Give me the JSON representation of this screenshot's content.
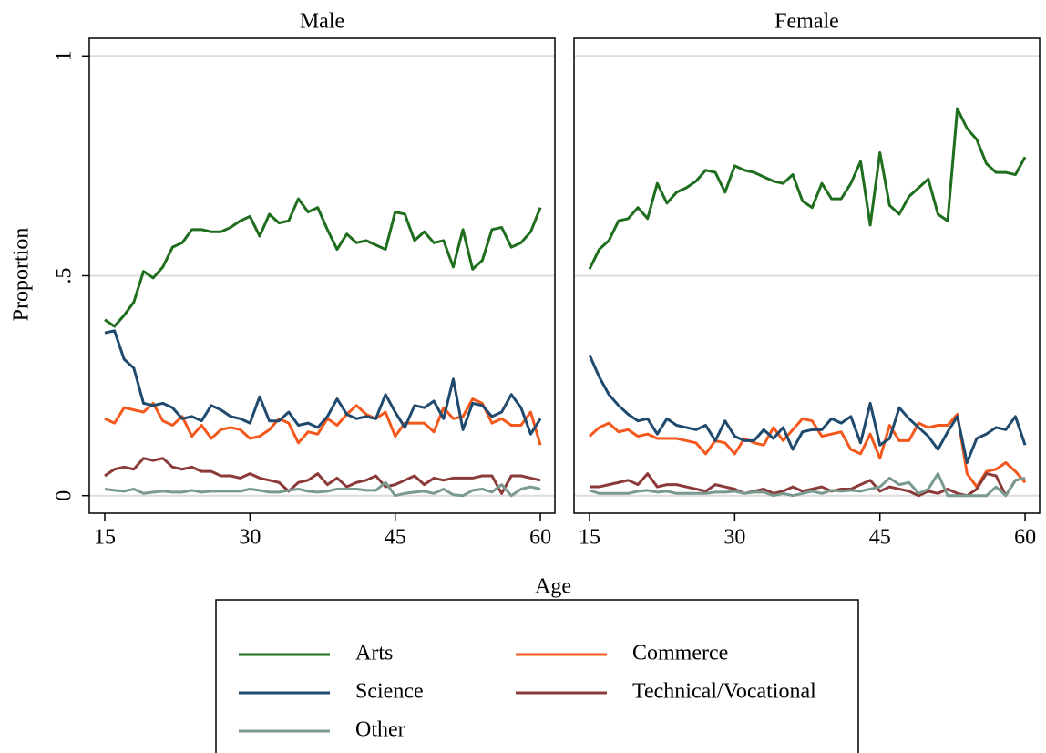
{
  "axes": {
    "xlabel": "Age",
    "ylabel": "Proportion",
    "legend": "bottom"
  },
  "chart_data": [
    {
      "type": "line",
      "title": "Male",
      "x": [
        15,
        16,
        17,
        18,
        19,
        20,
        21,
        22,
        23,
        24,
        25,
        26,
        27,
        28,
        29,
        30,
        31,
        32,
        33,
        34,
        35,
        36,
        37,
        38,
        39,
        40,
        41,
        42,
        43,
        44,
        45,
        46,
        47,
        48,
        49,
        50,
        51,
        52,
        53,
        54,
        55,
        56,
        57,
        58,
        59,
        60
      ],
      "xlim": [
        13.4,
        61.5
      ],
      "ylim": [
        -0.04,
        1.04
      ],
      "xticks": [
        15,
        30,
        45,
        60
      ],
      "yticks": [
        0,
        {
          "value": 0.5,
          "label": ".5"
        },
        1
      ],
      "grid": true,
      "series": [
        {
          "name": "Arts",
          "color": "#1e6e1e",
          "values": [
            0.4,
            0.385,
            0.41,
            0.44,
            0.51,
            0.495,
            0.52,
            0.565,
            0.575,
            0.605,
            0.605,
            0.6,
            0.6,
            0.61,
            0.625,
            0.635,
            0.59,
            0.64,
            0.62,
            0.625,
            0.675,
            0.645,
            0.655,
            0.605,
            0.56,
            0.595,
            0.575,
            0.58,
            0.57,
            0.56,
            0.645,
            0.64,
            0.58,
            0.6,
            0.575,
            0.58,
            0.52,
            0.605,
            0.515,
            0.535,
            0.605,
            0.61,
            0.565,
            0.575,
            0.6,
            0.655
          ]
        },
        {
          "name": "Commerce",
          "color": "#f4581c",
          "values": [
            0.175,
            0.165,
            0.2,
            0.195,
            0.19,
            0.21,
            0.17,
            0.16,
            0.18,
            0.135,
            0.16,
            0.13,
            0.15,
            0.155,
            0.15,
            0.13,
            0.135,
            0.15,
            0.175,
            0.165,
            0.12,
            0.145,
            0.14,
            0.175,
            0.16,
            0.185,
            0.205,
            0.185,
            0.175,
            0.19,
            0.135,
            0.165,
            0.165,
            0.165,
            0.145,
            0.2,
            0.175,
            0.18,
            0.22,
            0.21,
            0.165,
            0.175,
            0.16,
            0.16,
            0.19,
            0.115
          ]
        },
        {
          "name": "Science",
          "color": "#1f4a6e",
          "values": [
            0.37,
            0.375,
            0.31,
            0.29,
            0.21,
            0.205,
            0.21,
            0.2,
            0.175,
            0.18,
            0.17,
            0.205,
            0.195,
            0.18,
            0.175,
            0.165,
            0.225,
            0.17,
            0.17,
            0.19,
            0.16,
            0.165,
            0.155,
            0.18,
            0.22,
            0.185,
            0.175,
            0.18,
            0.175,
            0.23,
            0.19,
            0.155,
            0.205,
            0.2,
            0.215,
            0.175,
            0.265,
            0.15,
            0.21,
            0.205,
            0.18,
            0.19,
            0.23,
            0.2,
            0.14,
            0.175
          ]
        },
        {
          "name": "Technical/Vocational",
          "color": "#8b3a3a",
          "values": [
            0.045,
            0.06,
            0.065,
            0.06,
            0.085,
            0.08,
            0.085,
            0.065,
            0.06,
            0.065,
            0.055,
            0.055,
            0.045,
            0.045,
            0.04,
            0.05,
            0.04,
            0.035,
            0.03,
            0.01,
            0.03,
            0.035,
            0.05,
            0.025,
            0.04,
            0.02,
            0.03,
            0.035,
            0.045,
            0.02,
            0.025,
            0.035,
            0.045,
            0.025,
            0.04,
            0.035,
            0.04,
            0.04,
            0.04,
            0.045,
            0.045,
            0.005,
            0.045,
            0.045,
            0.04,
            0.035
          ]
        },
        {
          "name": "Other",
          "color": "#7a9a90",
          "values": [
            0.015,
            0.012,
            0.01,
            0.015,
            0.005,
            0.008,
            0.01,
            0.008,
            0.008,
            0.012,
            0.008,
            0.01,
            0.01,
            0.01,
            0.01,
            0.015,
            0.012,
            0.008,
            0.008,
            0.012,
            0.015,
            0.01,
            0.008,
            0.01,
            0.015,
            0.015,
            0.015,
            0.012,
            0.012,
            0.03,
            0.0,
            0.005,
            0.008,
            0.01,
            0.005,
            0.015,
            0.002,
            0.0,
            0.012,
            0.015,
            0.008,
            0.025,
            0.0,
            0.015,
            0.02,
            0.015
          ]
        }
      ]
    },
    {
      "type": "line",
      "title": "Female",
      "x": [
        15,
        16,
        17,
        18,
        19,
        20,
        21,
        22,
        23,
        24,
        25,
        26,
        27,
        28,
        29,
        30,
        31,
        32,
        33,
        34,
        35,
        36,
        37,
        38,
        39,
        40,
        41,
        42,
        43,
        44,
        45,
        46,
        47,
        48,
        49,
        50,
        51,
        52,
        53,
        54,
        55,
        56,
        57,
        58,
        59,
        60
      ],
      "xlim": [
        13.4,
        61.5
      ],
      "ylim": [
        -0.04,
        1.04
      ],
      "xticks": [
        15,
        30,
        45,
        60
      ],
      "yticks": [
        0,
        {
          "value": 0.5,
          "label": ".5"
        },
        1
      ],
      "grid": true,
      "series": [
        {
          "name": "Arts",
          "color": "#1e6e1e",
          "values": [
            0.515,
            0.56,
            0.58,
            0.625,
            0.63,
            0.655,
            0.63,
            0.71,
            0.665,
            0.69,
            0.7,
            0.715,
            0.74,
            0.735,
            0.69,
            0.75,
            0.74,
            0.735,
            0.725,
            0.715,
            0.71,
            0.73,
            0.67,
            0.655,
            0.71,
            0.675,
            0.675,
            0.71,
            0.76,
            0.615,
            0.78,
            0.66,
            0.64,
            0.68,
            0.7,
            0.72,
            0.64,
            0.625,
            0.88,
            0.835,
            0.81,
            0.755,
            0.735,
            0.735,
            0.73,
            0.77
          ]
        },
        {
          "name": "Commerce",
          "color": "#f4581c",
          "values": [
            0.135,
            0.155,
            0.165,
            0.145,
            0.15,
            0.135,
            0.14,
            0.13,
            0.13,
            0.13,
            0.125,
            0.12,
            0.095,
            0.125,
            0.12,
            0.095,
            0.13,
            0.12,
            0.115,
            0.155,
            0.125,
            0.15,
            0.175,
            0.17,
            0.135,
            0.14,
            0.145,
            0.105,
            0.095,
            0.14,
            0.085,
            0.16,
            0.125,
            0.125,
            0.165,
            0.155,
            0.16,
            0.16,
            0.185,
            0.05,
            0.02,
            0.055,
            0.06,
            0.075,
            0.055,
            0.03
          ]
        },
        {
          "name": "Science",
          "color": "#1f4a6e",
          "values": [
            0.32,
            0.27,
            0.23,
            0.205,
            0.185,
            0.17,
            0.175,
            0.14,
            0.175,
            0.16,
            0.155,
            0.15,
            0.16,
            0.125,
            0.17,
            0.135,
            0.125,
            0.125,
            0.15,
            0.13,
            0.155,
            0.105,
            0.145,
            0.15,
            0.15,
            0.175,
            0.165,
            0.18,
            0.12,
            0.21,
            0.115,
            0.13,
            0.2,
            0.175,
            0.155,
            0.135,
            0.105,
            0.145,
            0.18,
            0.075,
            0.13,
            0.14,
            0.155,
            0.15,
            0.18,
            0.115
          ]
        },
        {
          "name": "Technical/Vocational",
          "color": "#8b3a3a",
          "values": [
            0.02,
            0.02,
            0.025,
            0.03,
            0.035,
            0.025,
            0.05,
            0.02,
            0.025,
            0.025,
            0.02,
            0.015,
            0.01,
            0.025,
            0.02,
            0.015,
            0.005,
            0.01,
            0.015,
            0.005,
            0.01,
            0.02,
            0.01,
            0.015,
            0.02,
            0.01,
            0.015,
            0.015,
            0.025,
            0.035,
            0.01,
            0.02,
            0.015,
            0.01,
            0.0,
            0.01,
            0.005,
            0.015,
            0.005,
            0.0,
            0.015,
            0.05,
            0.045,
            0.0,
            0.035,
            0.04
          ]
        },
        {
          "name": "Other",
          "color": "#7a9a90",
          "values": [
            0.012,
            0.005,
            0.005,
            0.005,
            0.005,
            0.01,
            0.012,
            0.008,
            0.01,
            0.005,
            0.005,
            0.005,
            0.005,
            0.008,
            0.008,
            0.01,
            0.005,
            0.008,
            0.008,
            0.0,
            0.005,
            0.0,
            0.005,
            0.01,
            0.005,
            0.012,
            0.01,
            0.012,
            0.01,
            0.015,
            0.02,
            0.04,
            0.025,
            0.03,
            0.005,
            0.015,
            0.05,
            0.0,
            0.0,
            0.0,
            0.0,
            0.0,
            0.02,
            0.0,
            0.035,
            0.04
          ]
        }
      ]
    }
  ]
}
